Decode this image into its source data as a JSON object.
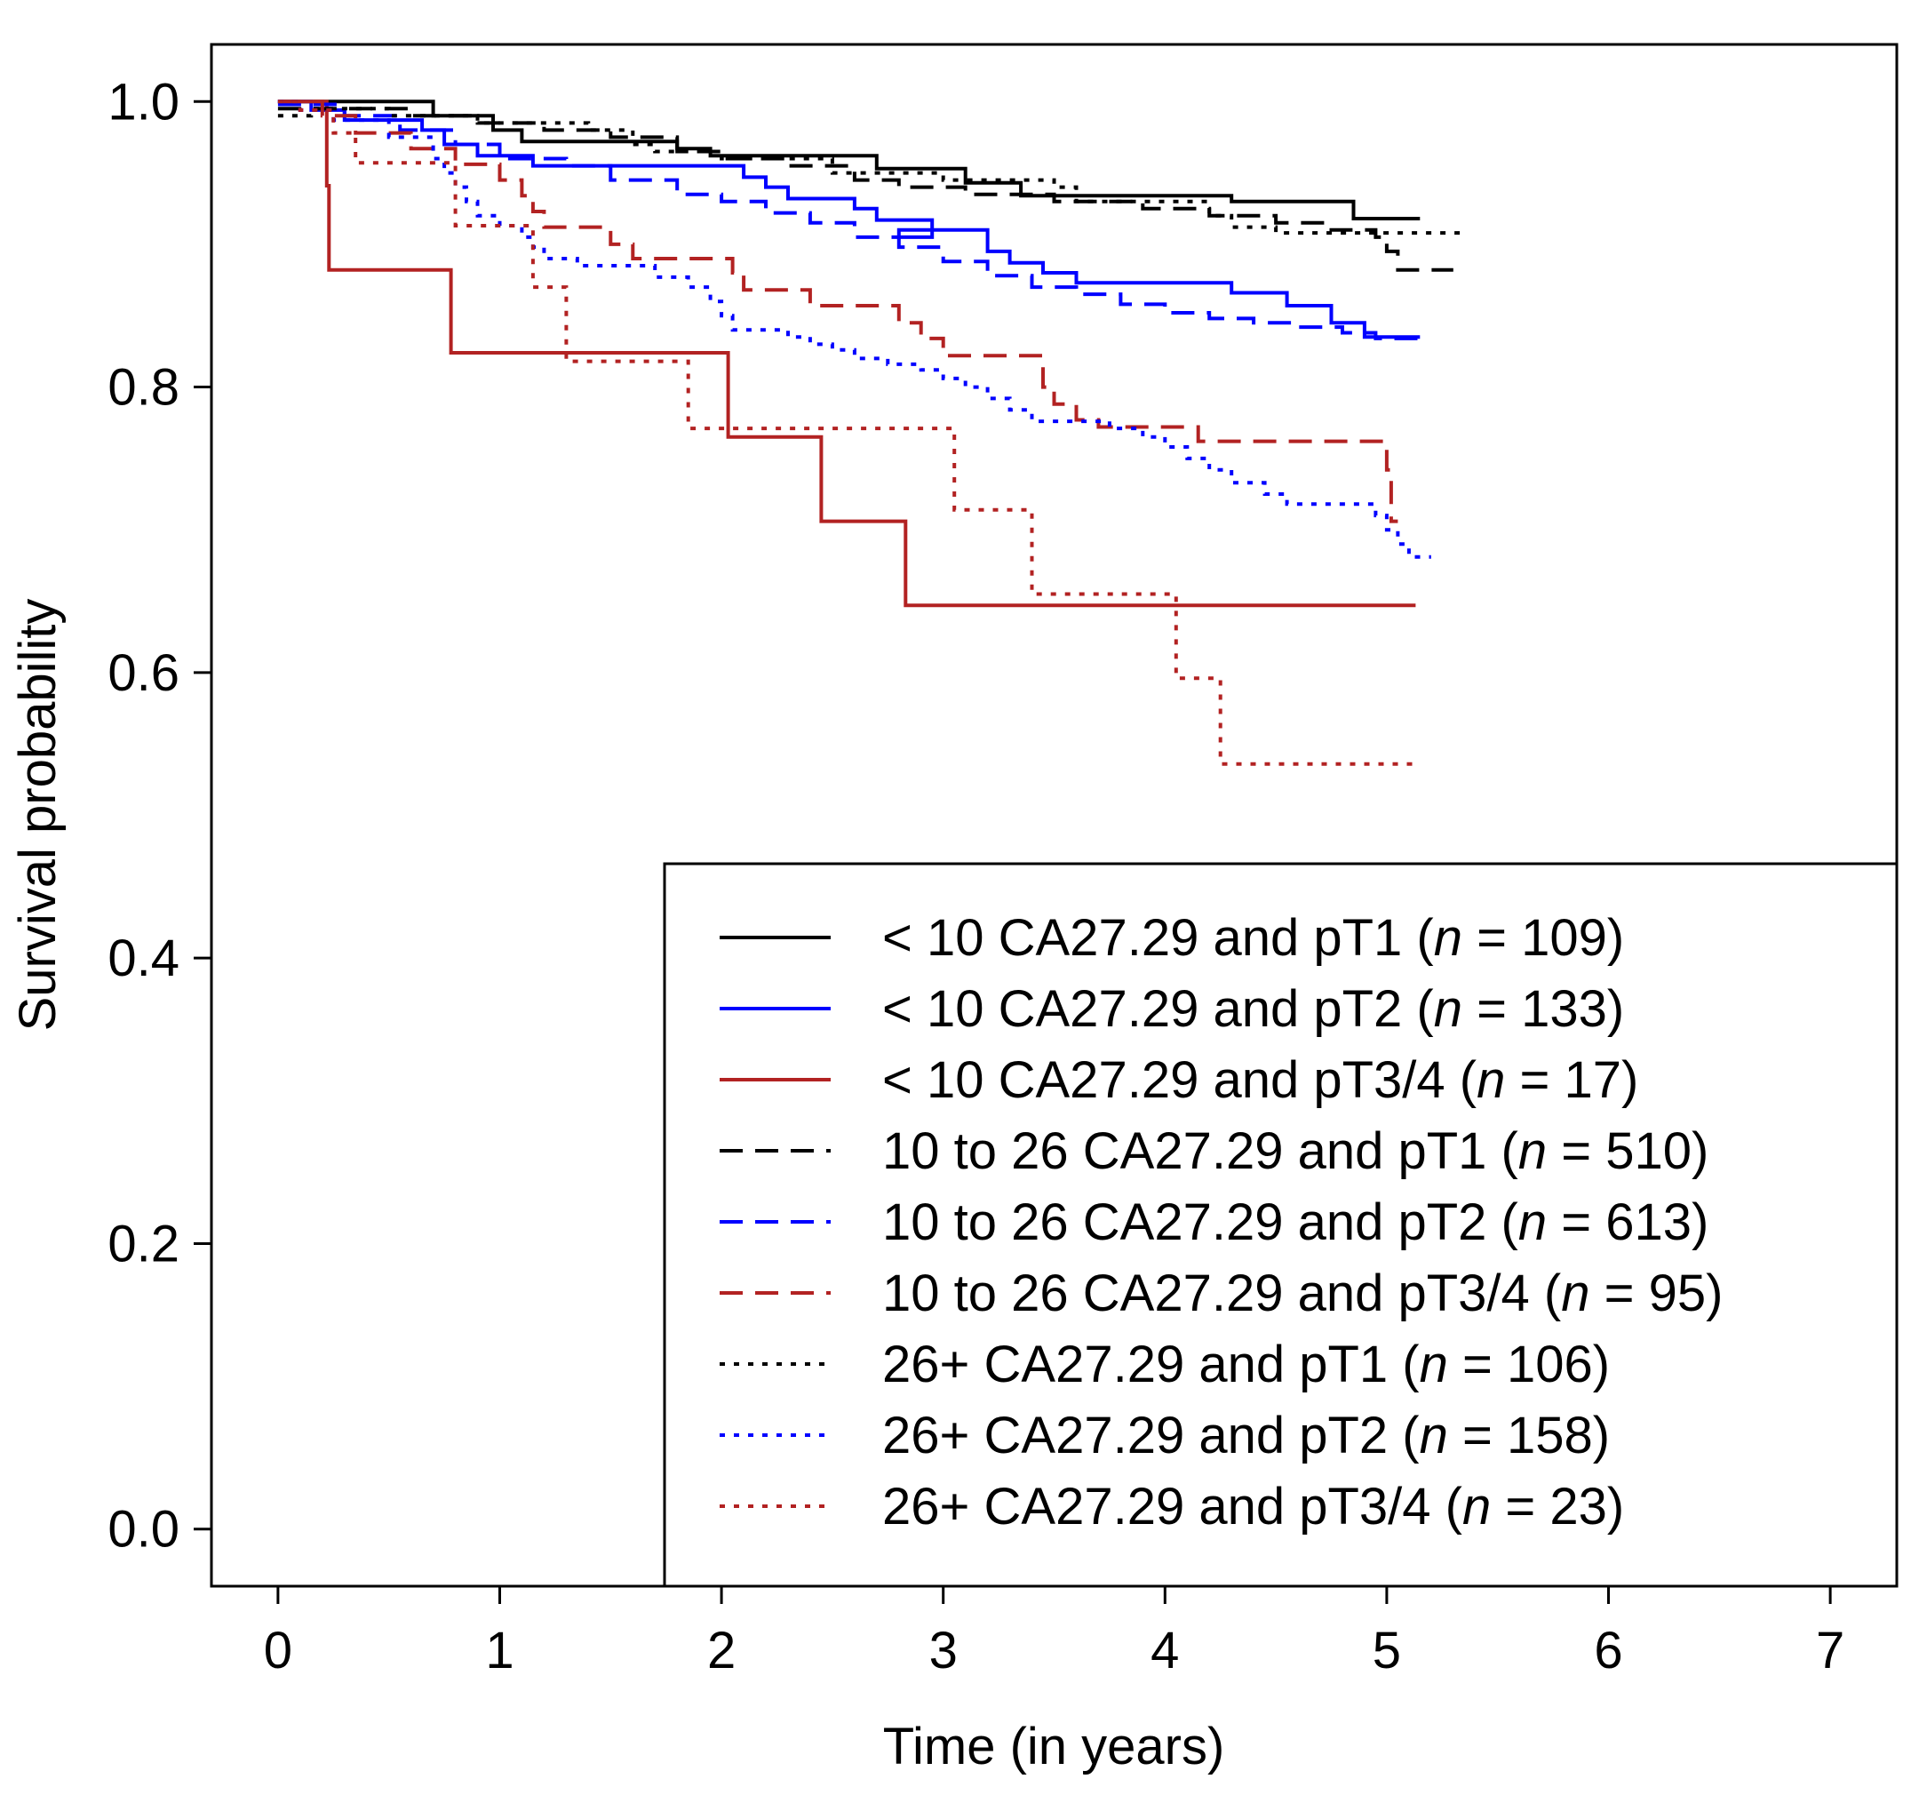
{
  "chart_data": {
    "type": "line",
    "subtype": "kaplan-meier step",
    "xlabel": "Time (in years)",
    "ylabel": "Survival probability",
    "xlim": [
      -0.3,
      7.3
    ],
    "ylim": [
      -0.04,
      1.04
    ],
    "x_ticks": [
      0,
      1,
      2,
      3,
      4,
      5,
      6,
      7
    ],
    "x_tick_labels": [
      "0",
      "1",
      "2",
      "3",
      "4",
      "5",
      "6",
      "7"
    ],
    "y_ticks": [
      0.0,
      0.2,
      0.4,
      0.6,
      0.8,
      1.0
    ],
    "y_tick_labels": [
      "0.0",
      "0.2",
      "0.4",
      "0.6",
      "0.8",
      "1.0"
    ],
    "grid": false,
    "legend_position": "bottom-right",
    "colors": {
      "black": "#000000",
      "blue": "#0000ff",
      "red": "#b22222"
    },
    "series": [
      {
        "legend_prefix": "< 10 CA27.29 and pT1 (",
        "legend_n": "n",
        "legend_suffix": " = 109)",
        "color": "black",
        "dash": "solid",
        "points": [
          [
            0,
            1.0
          ],
          [
            0.7,
            0.99
          ],
          [
            0.97,
            0.98
          ],
          [
            1.1,
            0.972
          ],
          [
            1.8,
            0.967
          ],
          [
            1.95,
            0.962
          ],
          [
            2.7,
            0.953
          ],
          [
            3.1,
            0.943
          ],
          [
            3.35,
            0.934
          ],
          [
            4.3,
            0.93
          ],
          [
            4.85,
            0.918
          ],
          [
            5.15,
            0.918
          ]
        ]
      },
      {
        "legend_prefix": "< 10 CA27.29 and pT2 (",
        "legend_n": "n",
        "legend_suffix": " = 133)",
        "color": "blue",
        "dash": "solid",
        "points": [
          [
            0,
            1.0
          ],
          [
            0.15,
            0.994
          ],
          [
            0.3,
            0.987
          ],
          [
            0.65,
            0.98
          ],
          [
            0.75,
            0.97
          ],
          [
            0.9,
            0.962
          ],
          [
            1.15,
            0.955
          ],
          [
            2.1,
            0.947
          ],
          [
            2.2,
            0.94
          ],
          [
            2.3,
            0.932
          ],
          [
            2.6,
            0.925
          ],
          [
            2.7,
            0.917
          ],
          [
            2.95,
            0.905
          ],
          [
            2.8,
            0.91
          ],
          [
            3.2,
            0.895
          ],
          [
            3.3,
            0.887
          ],
          [
            3.45,
            0.88
          ],
          [
            3.6,
            0.873
          ],
          [
            4.3,
            0.866
          ],
          [
            4.55,
            0.857
          ],
          [
            4.75,
            0.845
          ],
          [
            4.9,
            0.835
          ],
          [
            5.15,
            0.835
          ]
        ]
      },
      {
        "legend_prefix": "< 10 CA27.29 and pT3/4 (",
        "legend_n": "n",
        "legend_suffix": " = 17)",
        "color": "red",
        "dash": "solid",
        "points": [
          [
            0,
            1.0
          ],
          [
            0.22,
            0.941
          ],
          [
            0.23,
            0.882
          ],
          [
            0.78,
            0.824
          ],
          [
            2.03,
            0.765
          ],
          [
            2.45,
            0.706
          ],
          [
            2.83,
            0.647
          ],
          [
            5.13,
            0.647
          ]
        ]
      },
      {
        "legend_prefix": "10 to 26 CA27.29 and pT1 (",
        "legend_n": "n",
        "legend_suffix": " = 510)",
        "color": "black",
        "dash": "dashed",
        "points": [
          [
            0,
            0.995
          ],
          [
            0.6,
            0.99
          ],
          [
            0.9,
            0.985
          ],
          [
            1.2,
            0.98
          ],
          [
            1.5,
            0.975
          ],
          [
            1.8,
            0.965
          ],
          [
            2.0,
            0.96
          ],
          [
            2.3,
            0.955
          ],
          [
            2.6,
            0.945
          ],
          [
            2.8,
            0.94
          ],
          [
            3.1,
            0.935
          ],
          [
            3.5,
            0.93
          ],
          [
            3.9,
            0.925
          ],
          [
            4.2,
            0.92
          ],
          [
            4.5,
            0.915
          ],
          [
            4.75,
            0.91
          ],
          [
            4.95,
            0.905
          ],
          [
            5.0,
            0.895
          ],
          [
            5.05,
            0.882
          ],
          [
            5.3,
            0.882
          ]
        ]
      },
      {
        "legend_prefix": "10 to 26 CA27.29 and pT2 (",
        "legend_n": "n",
        "legend_suffix": " = 613)",
        "color": "blue",
        "dash": "dashed",
        "points": [
          [
            0,
            0.998
          ],
          [
            0.3,
            0.99
          ],
          [
            0.55,
            0.98
          ],
          [
            0.8,
            0.97
          ],
          [
            1.0,
            0.96
          ],
          [
            1.3,
            0.955
          ],
          [
            1.5,
            0.945
          ],
          [
            1.8,
            0.935
          ],
          [
            2.0,
            0.93
          ],
          [
            2.2,
            0.922
          ],
          [
            2.4,
            0.915
          ],
          [
            2.6,
            0.905
          ],
          [
            2.8,
            0.898
          ],
          [
            3.0,
            0.888
          ],
          [
            3.2,
            0.878
          ],
          [
            3.4,
            0.87
          ],
          [
            3.6,
            0.865
          ],
          [
            3.8,
            0.858
          ],
          [
            4.0,
            0.852
          ],
          [
            4.2,
            0.848
          ],
          [
            4.4,
            0.845
          ],
          [
            4.6,
            0.842
          ],
          [
            4.8,
            0.838
          ],
          [
            4.95,
            0.834
          ],
          [
            5.15,
            0.834
          ]
        ]
      },
      {
        "legend_prefix": "10 to 26 CA27.29 and pT3/4 (",
        "legend_n": "n",
        "legend_suffix": " = 95)",
        "color": "red",
        "dash": "dashed",
        "points": [
          [
            0,
            1.0
          ],
          [
            0.2,
            0.99
          ],
          [
            0.35,
            0.978
          ],
          [
            0.6,
            0.967
          ],
          [
            0.8,
            0.956
          ],
          [
            1.0,
            0.945
          ],
          [
            1.1,
            0.934
          ],
          [
            1.15,
            0.923
          ],
          [
            1.2,
            0.912
          ],
          [
            1.5,
            0.9
          ],
          [
            1.6,
            0.89
          ],
          [
            2.05,
            0.88
          ],
          [
            2.1,
            0.868
          ],
          [
            2.4,
            0.857
          ],
          [
            2.8,
            0.845
          ],
          [
            2.9,
            0.834
          ],
          [
            3.0,
            0.822
          ],
          [
            3.45,
            0.8
          ],
          [
            3.5,
            0.788
          ],
          [
            3.6,
            0.777
          ],
          [
            3.7,
            0.772
          ],
          [
            4.15,
            0.762
          ],
          [
            5.0,
            0.742
          ],
          [
            5.02,
            0.706
          ],
          [
            5.05,
            0.706
          ]
        ]
      },
      {
        "legend_prefix": "26+ CA27.29 and pT1 (",
        "legend_n": "n",
        "legend_suffix": " = 106)",
        "color": "black",
        "dash": "dotted",
        "points": [
          [
            0,
            0.99
          ],
          [
            0.15,
            0.995
          ],
          [
            0.5,
            0.99
          ],
          [
            0.9,
            0.985
          ],
          [
            1.4,
            0.98
          ],
          [
            1.6,
            0.97
          ],
          [
            1.7,
            0.965
          ],
          [
            2.0,
            0.96
          ],
          [
            2.5,
            0.95
          ],
          [
            3.0,
            0.945
          ],
          [
            3.5,
            0.94
          ],
          [
            3.6,
            0.93
          ],
          [
            4.0,
            0.93
          ],
          [
            4.2,
            0.92
          ],
          [
            4.3,
            0.912
          ],
          [
            4.5,
            0.908
          ],
          [
            5.35,
            0.908
          ]
        ]
      },
      {
        "legend_prefix": "26+ CA27.29 and pT2 (",
        "legend_n": "n",
        "legend_suffix": " = 158)",
        "color": "blue",
        "dash": "dotted",
        "points": [
          [
            0,
            1.0
          ],
          [
            0.1,
            0.994
          ],
          [
            0.25,
            0.987
          ],
          [
            0.5,
            0.975
          ],
          [
            0.7,
            0.96
          ],
          [
            0.75,
            0.95
          ],
          [
            0.8,
            0.94
          ],
          [
            0.85,
            0.93
          ],
          [
            0.9,
            0.92
          ],
          [
            1.0,
            0.913
          ],
          [
            1.1,
            0.905
          ],
          [
            1.15,
            0.898
          ],
          [
            1.2,
            0.89
          ],
          [
            1.35,
            0.885
          ],
          [
            1.7,
            0.877
          ],
          [
            1.85,
            0.87
          ],
          [
            1.95,
            0.86
          ],
          [
            2.0,
            0.85
          ],
          [
            2.05,
            0.84
          ],
          [
            2.3,
            0.835
          ],
          [
            2.4,
            0.83
          ],
          [
            2.5,
            0.826
          ],
          [
            2.6,
            0.82
          ],
          [
            2.75,
            0.816
          ],
          [
            2.9,
            0.812
          ],
          [
            3.0,
            0.806
          ],
          [
            3.1,
            0.8
          ],
          [
            3.2,
            0.792
          ],
          [
            3.3,
            0.784
          ],
          [
            3.4,
            0.776
          ],
          [
            3.75,
            0.771
          ],
          [
            3.9,
            0.765
          ],
          [
            4.0,
            0.758
          ],
          [
            4.1,
            0.75
          ],
          [
            4.2,
            0.742
          ],
          [
            4.3,
            0.733
          ],
          [
            4.45,
            0.725
          ],
          [
            4.55,
            0.718
          ],
          [
            4.95,
            0.71
          ],
          [
            5.0,
            0.7
          ],
          [
            5.05,
            0.69
          ],
          [
            5.1,
            0.681
          ],
          [
            5.2,
            0.681
          ]
        ]
      },
      {
        "legend_prefix": "26+ CA27.29 and pT3/4 (",
        "legend_n": "n",
        "legend_suffix": " = 23)",
        "color": "red",
        "dash": "dotted",
        "points": [
          [
            0,
            1.0
          ],
          [
            0.1,
            0.994
          ],
          [
            0.25,
            0.978
          ],
          [
            0.35,
            0.957
          ],
          [
            0.8,
            0.913
          ],
          [
            1.15,
            0.87
          ],
          [
            1.3,
            0.818
          ],
          [
            1.85,
            0.771
          ],
          [
            3.05,
            0.714
          ],
          [
            3.4,
            0.655
          ],
          [
            4.05,
            0.596
          ],
          [
            4.25,
            0.536
          ],
          [
            5.12,
            0.536
          ]
        ]
      }
    ]
  }
}
